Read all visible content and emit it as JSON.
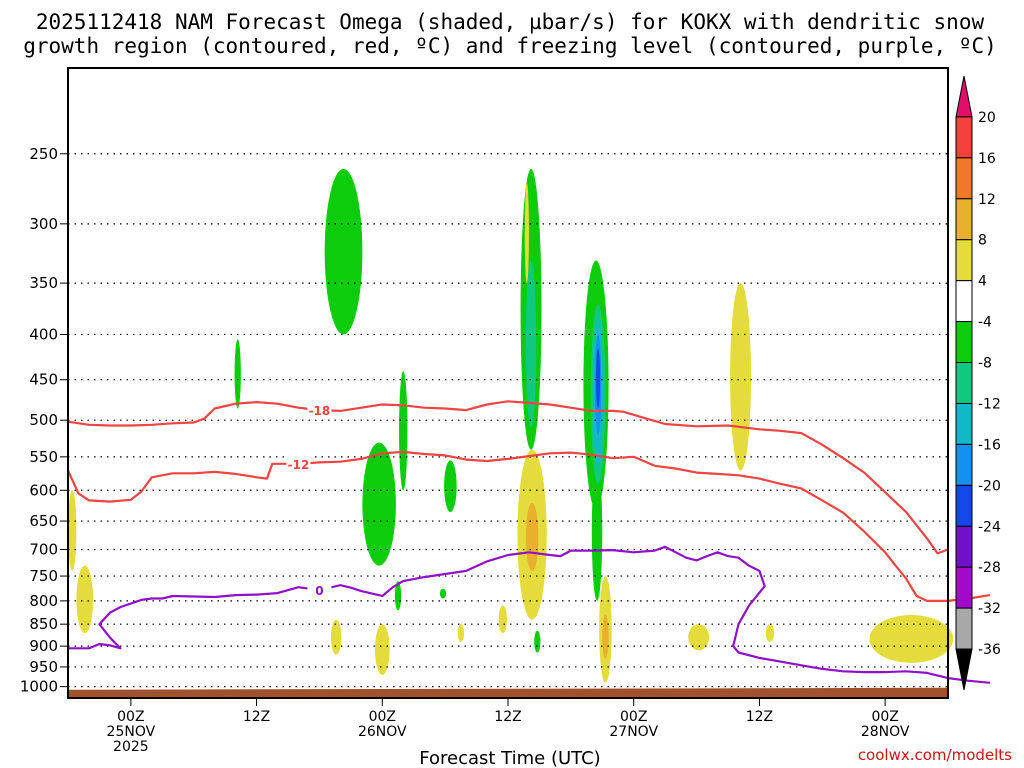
{
  "title": {
    "line1": "2025112418 NAM Forecast Omega (shaded, µbar/s) for KOKX with dendritic snow",
    "line2": "growth region (contoured, red, ºC) and freezing level (contoured, purple, ºC)"
  },
  "credit": "coolwx.com/modelts",
  "chart_data": {
    "type": "contour-timeheight",
    "title": "2025112418 NAM Forecast Omega (shaded, µbar/s) for KOKX with dendritic snow growth region (contoured, red, ºC) and freezing level (contoured, purple, ºC)",
    "xlabel": "Forecast Time (UTC)",
    "ylabel": "",
    "x_unit": "forecast hour (0 = 2025-11-24 18Z)",
    "xlim": [
      0,
      84
    ],
    "ylim_pressure_hPa": [
      1030,
      200
    ],
    "y_ticks": [
      250,
      300,
      350,
      400,
      450,
      500,
      550,
      600,
      650,
      700,
      750,
      800,
      850,
      900,
      950,
      1000
    ],
    "x_ticks": [
      {
        "hour": 6,
        "line1": "00Z",
        "line2": "25NOV",
        "line3": "2025"
      },
      {
        "hour": 18,
        "line1": "12Z",
        "line2": "",
        "line3": ""
      },
      {
        "hour": 30,
        "line1": "00Z",
        "line2": "26NOV",
        "line3": ""
      },
      {
        "hour": 42,
        "line1": "12Z",
        "line2": "",
        "line3": ""
      },
      {
        "hour": 54,
        "line1": "00Z",
        "line2": "27NOV",
        "line3": ""
      },
      {
        "hour": 66,
        "line1": "12Z",
        "line2": "",
        "line3": ""
      },
      {
        "hour": 78,
        "line1": "00Z",
        "line2": "28NOV",
        "line3": ""
      }
    ],
    "grid": true,
    "colorbar": {
      "labels": [
        "20",
        "16",
        "12",
        "8",
        "4",
        "-4",
        "-8",
        "-12",
        "-16",
        "-20",
        "-24",
        "-28",
        "-32",
        "-36"
      ],
      "colors": [
        "#e0106a",
        "#f5413c",
        "#f07828",
        "#e8b02c",
        "#e4dc3c",
        "#ffffff",
        "#0ccc0c",
        "#10c880",
        "#10b8c8",
        "#1490f0",
        "#1448e8",
        "#7010c8",
        "#a00ac8",
        "#a8a8a8",
        "#000000"
      ]
    },
    "contour_lines": [
      {
        "label": "-18",
        "color": "#ee4444",
        "points": [
          [
            0,
            502
          ],
          [
            2,
            506
          ],
          [
            4,
            507
          ],
          [
            6,
            507
          ],
          [
            8,
            506
          ],
          [
            10,
            504
          ],
          [
            12,
            503
          ],
          [
            13,
            498
          ],
          [
            14,
            485
          ],
          [
            16,
            479
          ],
          [
            18,
            477
          ],
          [
            20,
            479
          ],
          [
            22,
            484
          ],
          [
            24,
            487
          ],
          [
            26,
            488
          ],
          [
            28,
            484
          ],
          [
            30,
            480
          ],
          [
            32,
            481
          ],
          [
            34,
            484
          ],
          [
            36,
            485
          ],
          [
            38,
            487
          ],
          [
            40,
            480
          ],
          [
            42,
            476
          ],
          [
            44,
            478
          ],
          [
            46,
            480
          ],
          [
            48,
            484
          ],
          [
            50,
            488
          ],
          [
            52,
            488
          ],
          [
            53,
            489
          ],
          [
            55,
            497
          ],
          [
            57,
            505
          ],
          [
            60,
            508
          ],
          [
            63,
            507
          ],
          [
            66,
            512
          ],
          [
            68,
            514
          ],
          [
            70,
            517
          ],
          [
            72,
            533
          ],
          [
            74,
            552
          ],
          [
            76,
            573
          ],
          [
            78,
            603
          ],
          [
            80,
            635
          ],
          [
            82,
            680
          ],
          [
            83,
            707
          ],
          [
            84,
            700
          ]
        ]
      },
      {
        "label": "-12",
        "color": "#ee4444",
        "points": [
          [
            0,
            570
          ],
          [
            1,
            605
          ],
          [
            2,
            616
          ],
          [
            4,
            618
          ],
          [
            6,
            615
          ],
          [
            7,
            602
          ],
          [
            8,
            580
          ],
          [
            10,
            574
          ],
          [
            12,
            574
          ],
          [
            14,
            572
          ],
          [
            16,
            575
          ],
          [
            18,
            580
          ],
          [
            19,
            582
          ],
          [
            19.5,
            560
          ],
          [
            20,
            560
          ],
          [
            22,
            560
          ],
          [
            24,
            558
          ],
          [
            26,
            557
          ],
          [
            28,
            553
          ],
          [
            30,
            545
          ],
          [
            32,
            543
          ],
          [
            34,
            546
          ],
          [
            36,
            548
          ],
          [
            38,
            554
          ],
          [
            40,
            556
          ],
          [
            42,
            553
          ],
          [
            44,
            549
          ],
          [
            46,
            545
          ],
          [
            48,
            544
          ],
          [
            50,
            547
          ],
          [
            52,
            552
          ],
          [
            54,
            550
          ],
          [
            56,
            563
          ],
          [
            58,
            567
          ],
          [
            60,
            573
          ],
          [
            62,
            575
          ],
          [
            64,
            577
          ],
          [
            66,
            582
          ],
          [
            68,
            590
          ],
          [
            70,
            597
          ],
          [
            72,
            616
          ],
          [
            74,
            636
          ],
          [
            76,
            668
          ],
          [
            78,
            705
          ],
          [
            79,
            730
          ],
          [
            80,
            755
          ],
          [
            81,
            790
          ],
          [
            82,
            800
          ],
          [
            84,
            800
          ],
          [
            86,
            795
          ],
          [
            88,
            788
          ]
        ]
      },
      {
        "label": "0",
        "color": "#9010c8",
        "points": [
          [
            0,
            905
          ],
          [
            2,
            905
          ],
          [
            3,
            895
          ],
          [
            4,
            898
          ],
          [
            5,
            905
          ],
          [
            4,
            880
          ],
          [
            3,
            850
          ],
          [
            4,
            825
          ],
          [
            5,
            813
          ],
          [
            7,
            798
          ],
          [
            8,
            795
          ],
          [
            9,
            795
          ],
          [
            10,
            790
          ],
          [
            12,
            791
          ],
          [
            14,
            792
          ],
          [
            16,
            788
          ],
          [
            18,
            787
          ],
          [
            20,
            784
          ],
          [
            22,
            772
          ],
          [
            24,
            778
          ],
          [
            26,
            768
          ],
          [
            27,
            773
          ],
          [
            28,
            780
          ],
          [
            30,
            790
          ],
          [
            31,
            772
          ],
          [
            32,
            760
          ],
          [
            34,
            752
          ],
          [
            36,
            746
          ],
          [
            38,
            740
          ],
          [
            40,
            722
          ],
          [
            42,
            710
          ],
          [
            44,
            705
          ],
          [
            46,
            710
          ],
          [
            47,
            712
          ],
          [
            48,
            702
          ],
          [
            50,
            702
          ],
          [
            52,
            701
          ],
          [
            54,
            705
          ],
          [
            56,
            702
          ],
          [
            57,
            695
          ],
          [
            59,
            715
          ],
          [
            60,
            720
          ],
          [
            61,
            712
          ],
          [
            62,
            705
          ],
          [
            63,
            712
          ],
          [
            64,
            715
          ],
          [
            65,
            730
          ],
          [
            66,
            740
          ],
          [
            66.5,
            770
          ],
          [
            65,
            810
          ],
          [
            64,
            850
          ],
          [
            63.5,
            900
          ],
          [
            64,
            915
          ],
          [
            66,
            928
          ],
          [
            68,
            937
          ],
          [
            70,
            946
          ],
          [
            72,
            955
          ],
          [
            74,
            961
          ],
          [
            76,
            963
          ],
          [
            78,
            963
          ],
          [
            80,
            961
          ],
          [
            82,
            965
          ],
          [
            84,
            978
          ],
          [
            86,
            985
          ],
          [
            88,
            990
          ]
        ]
      }
    ],
    "omega_regions": [
      {
        "value": -8,
        "color": "#0ccc0c",
        "center": [
          26.3,
          330
        ],
        "half_span": [
          1.8,
          70
        ]
      },
      {
        "value": -8,
        "color": "#0ccc0c",
        "center": [
          16.2,
          445
        ],
        "half_span": [
          0.3,
          40
        ]
      },
      {
        "value": -8,
        "color": "#0ccc0c",
        "center": [
          32.0,
          520
        ],
        "half_span": [
          0.4,
          80
        ]
      },
      {
        "value": -8,
        "color": "#0ccc0c",
        "center": [
          29.7,
          630
        ],
        "half_span": [
          1.6,
          100
        ]
      },
      {
        "value": -8,
        "color": "#0ccc0c",
        "center": [
          36.5,
          595
        ],
        "half_span": [
          0.6,
          40
        ]
      },
      {
        "value": -8,
        "color": "#0ccc0c",
        "center": [
          31.5,
          790
        ],
        "half_span": [
          0.3,
          30
        ]
      },
      {
        "value": -8,
        "color": "#0ccc0c",
        "center": [
          35.8,
          785
        ],
        "half_span": [
          0.3,
          10
        ]
      },
      {
        "value": -8,
        "color": "#0ccc0c",
        "center": [
          44.2,
          400
        ],
        "half_span": [
          1.0,
          140
        ]
      },
      {
        "value": -8,
        "color": "#0ccc0c",
        "center": [
          50.4,
          480
        ],
        "half_span": [
          1.2,
          150
        ]
      },
      {
        "value": -8,
        "color": "#0ccc0c",
        "center": [
          44.8,
          890
        ],
        "half_span": [
          0.3,
          25
        ]
      },
      {
        "value": -8,
        "color": "#0ccc0c",
        "center": [
          50.5,
          680
        ],
        "half_span": [
          0.5,
          120
        ]
      },
      {
        "value": -12,
        "color": "#10c880",
        "center": [
          44.2,
          420
        ],
        "half_span": [
          0.5,
          90
        ]
      },
      {
        "value": -12,
        "color": "#10c880",
        "center": [
          50.6,
          480
        ],
        "half_span": [
          0.7,
          110
        ]
      },
      {
        "value": -16,
        "color": "#10b8c8",
        "center": [
          50.6,
          475
        ],
        "half_span": [
          0.45,
          90
        ]
      },
      {
        "value": -20,
        "color": "#1490f0",
        "center": [
          50.6,
          460
        ],
        "half_span": [
          0.3,
          60
        ]
      },
      {
        "value": -24,
        "color": "#1448e8",
        "center": [
          50.6,
          450
        ],
        "half_span": [
          0.18,
          35
        ]
      },
      {
        "value": 4,
        "color": "#e4dc3c",
        "center": [
          0.4,
          670
        ],
        "half_span": [
          0.4,
          70
        ]
      },
      {
        "value": 4,
        "color": "#e4dc3c",
        "center": [
          1.6,
          800
        ],
        "half_span": [
          0.8,
          70
        ]
      },
      {
        "value": 4,
        "color": "#e4dc3c",
        "center": [
          25.6,
          880
        ],
        "half_span": [
          0.5,
          40
        ]
      },
      {
        "value": 4,
        "color": "#e4dc3c",
        "center": [
          30.0,
          910
        ],
        "half_span": [
          0.7,
          60
        ]
      },
      {
        "value": 4,
        "color": "#e4dc3c",
        "center": [
          37.5,
          870
        ],
        "half_span": [
          0.3,
          20
        ]
      },
      {
        "value": 4,
        "color": "#e4dc3c",
        "center": [
          41.5,
          840
        ],
        "half_span": [
          0.4,
          30
        ]
      },
      {
        "value": 4,
        "color": "#e4dc3c",
        "center": [
          43.8,
          310
        ],
        "half_span": [
          0.2,
          40
        ]
      },
      {
        "value": 4,
        "color": "#e4dc3c",
        "center": [
          44.3,
          690
        ],
        "half_span": [
          1.4,
          150
        ]
      },
      {
        "value": 4,
        "color": "#e4dc3c",
        "center": [
          51.3,
          870
        ],
        "half_span": [
          0.6,
          120
        ]
      },
      {
        "value": 4,
        "color": "#e4dc3c",
        "center": [
          60.2,
          880
        ],
        "half_span": [
          1.0,
          30
        ]
      },
      {
        "value": 4,
        "color": "#e4dc3c",
        "center": [
          64.2,
          460
        ],
        "half_span": [
          1.0,
          110
        ]
      },
      {
        "value": 4,
        "color": "#e4dc3c",
        "center": [
          67.0,
          870
        ],
        "half_span": [
          0.4,
          20
        ]
      },
      {
        "value": 4,
        "color": "#e4dc3c",
        "center": [
          80.5,
          885
        ],
        "half_span": [
          4.0,
          55
        ]
      },
      {
        "value": 8,
        "color": "#e8b02c",
        "center": [
          44.3,
          680
        ],
        "half_span": [
          0.6,
          60
        ]
      },
      {
        "value": 8,
        "color": "#e8b02c",
        "center": [
          51.3,
          880
        ],
        "half_span": [
          0.3,
          50
        ]
      }
    ],
    "surface": {
      "color": "#a0522d",
      "pressure_hPa": [
        1008,
        1003
      ]
    }
  }
}
